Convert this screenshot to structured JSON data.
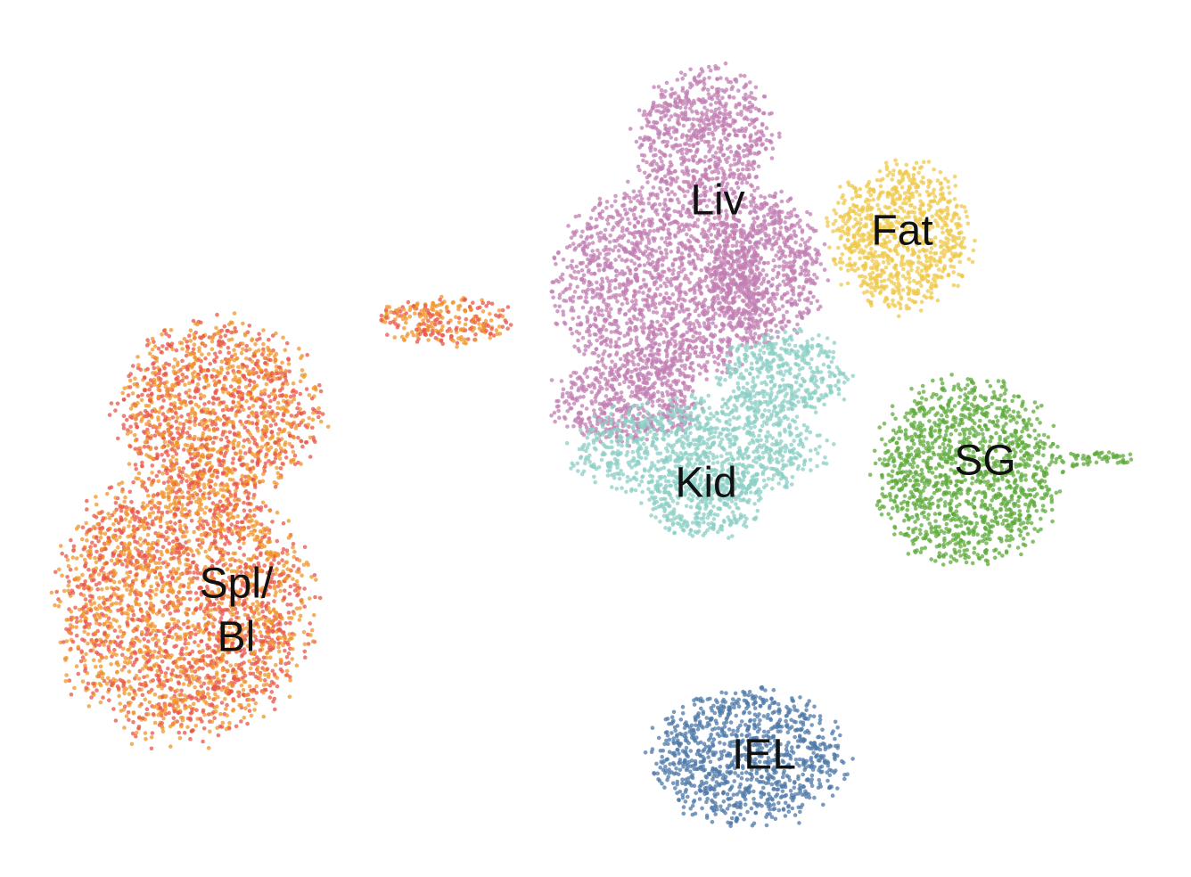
{
  "chart_data": {
    "type": "scatter",
    "clusters": [
      {
        "lines": [
          "Liv"
        ],
        "colors": [
          "#c27fb3"
        ]
      },
      {
        "lines": [
          "Fat"
        ],
        "colors": [
          "#efc84a"
        ]
      },
      {
        "lines": [
          "Kid"
        ],
        "colors": [
          "#8ccfc6"
        ]
      },
      {
        "lines": [
          "SG"
        ],
        "colors": [
          "#5fab3c"
        ]
      },
      {
        "lines": [
          "Spl/",
          "Bl"
        ],
        "colors": [
          "#e8554a",
          "#f0952a"
        ]
      },
      {
        "lines": [
          "IEL"
        ],
        "colors": [
          "#4f79a8"
        ]
      }
    ]
  }
}
